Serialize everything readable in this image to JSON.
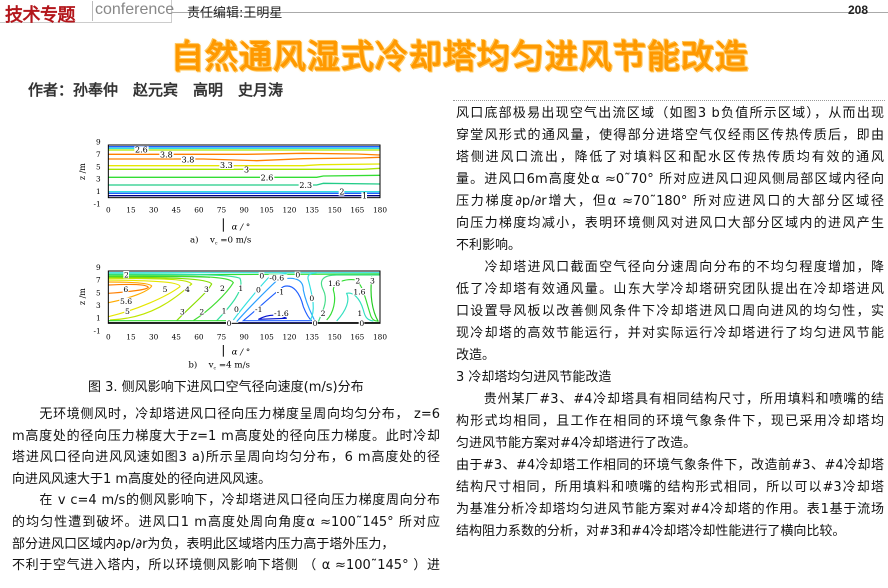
{
  "header": {
    "section_logo": "技术专题",
    "conference_label": "conference",
    "editor": "责任编辑:王明星",
    "page_number": "208"
  },
  "article": {
    "title": "自然通风湿式冷却塔均匀进风节能改造",
    "authors": "作者：孙奉仲　赵元宾　高明　史月涛"
  },
  "figure": {
    "caption": "图 3. 侧风影响下进风口空气径向速度(m/s)分布",
    "x_ticks": [
      "0",
      "15",
      "30",
      "45",
      "60",
      "75",
      "90",
      "105",
      "120",
      "135",
      "150",
      "165",
      "180"
    ],
    "y_ticks": [
      "9",
      "7",
      "5",
      "3",
      "1",
      "-1"
    ],
    "y_label": "z /m",
    "x_label": "α / °",
    "panel_a": {
      "label": "a)　 v",
      "sub": "c",
      "cond": " =0  m/s",
      "contour_labels": [
        "2.6",
        "3.8",
        "3.8",
        "3.3",
        "3",
        "2.6",
        "2.3",
        "2",
        "1"
      ]
    },
    "panel_b": {
      "label": "b)　 v",
      "sub": "c",
      "cond": " =4  m/s",
      "contour_labels": [
        "2",
        "6",
        "5.6",
        "5",
        "5",
        "4",
        "3",
        "2",
        "1",
        "3",
        "2",
        "1",
        "0",
        "0",
        "-0.6",
        "0",
        "0",
        "-1",
        "-1",
        "-1.6",
        "0",
        "0",
        "0",
        "2",
        "1.6",
        "2",
        "3",
        "1.6",
        "1",
        "0"
      ]
    },
    "colors": {
      "orange": "#ff7f00",
      "yellow": "#e6e600",
      "green": "#33dd33",
      "cyan": "#33e0e0",
      "blue": "#2060ff",
      "navy": "#000080"
    }
  },
  "left_column": [
    {
      "text": "　　无环境侧风时，冷却塔进风口径向压力梯度呈周向均匀分布， z=6",
      "full": true
    },
    {
      "text": "m高度处的径向压力梯度大于z=1 m高度处的径向压力梯度。此时冷却",
      "full": true
    },
    {
      "text": "塔进风口径向进风风速如图3 a)所示呈周向均匀分布，6 m高度处的径",
      "full": true
    },
    {
      "text": "向进风风速大于1 m高度处的径向进风风速。",
      "full": false
    },
    {
      "text": "　　在 v c=4 m/s的侧风影响下，冷却塔进风口径向压力梯度周向分布",
      "full": true
    },
    {
      "text": "的均匀性遭到破坏。进风口1 m高度处周向角度α ≈100˜145° 所对应",
      "full": true
    },
    {
      "text": "部分进风口区域内∂p/∂r为负，表明此区域塔内压力高于塔外压力，",
      "full": false
    },
    {
      "text": "不利于空气进入塔内，所以环境侧风影响下塔侧 （ α ≈100˜145° ）进",
      "full": true
    }
  ],
  "right_column": [
    {
      "text": "风口底部极易出现空气出流区域（如图3 b负值所示区域），从而出现",
      "full": true
    },
    {
      "text": "穿堂风形式的通风量，使得部分进塔空气仅经雨区传热传质后，即由",
      "full": true
    },
    {
      "text": "塔侧进风口流出，降低了对填料区和配水区传热传质均有效的通风",
      "full": true
    },
    {
      "text": "量。进风口6m高度处α ≈0˜70° 所对应进风口迎风侧局部区域内径向",
      "full": true
    },
    {
      "text": "压力梯度∂p/∂r增大，但α ≈70˜180° 所对应进风口的大部分区域径",
      "full": true
    },
    {
      "text": "向压力梯度均减小，表明环境侧风对进风口大部分区域内的进风产生",
      "full": true
    },
    {
      "text": "不利影响。",
      "full": false
    },
    {
      "text": "　　冷却塔进风口截面空气径向分速周向分布的不均匀程度增加，降",
      "full": true
    },
    {
      "text": "低了冷却塔有效通风量。山东大学冷却塔研究团队提出在冷却塔进风",
      "full": true
    },
    {
      "text": "口设置导风板以改善侧风条件下冷却塔进风口周向进风的均匀性，实",
      "full": true
    },
    {
      "text": "现冷却塔的高效节能运行，并对实际运行冷却塔进行了均匀进风节能",
      "full": true
    },
    {
      "text": "改造。",
      "full": false
    },
    {
      "text": "3 冷却塔均匀进风节能改造",
      "full": false
    },
    {
      "text": "　　贵州某厂#3、#4冷却塔具有相同结构尺寸，所用填料和喷嘴的结",
      "full": true
    },
    {
      "text": "构形式均相同，且工作在相同的环境气象条件下，现已采用冷却塔均",
      "full": true
    },
    {
      "text": "匀进风节能方案对#4冷却塔进行了改造。",
      "full": false
    },
    {
      "text": "由于#3、#4冷却塔工作相同的环境气象条件下，改造前#3、#4冷却塔",
      "full": true
    },
    {
      "text": "结构尺寸相同，所用填料和喷嘴的结构形式相同，所以可以#3冷却塔",
      "full": true
    },
    {
      "text": "为基准分析冷却塔均匀进风节能方案对#4冷却塔的作用。表1基于流场",
      "full": true
    },
    {
      "text": "结构阻力系数的分析，对#3和#4冷却塔冷却性能进行了横向比较。",
      "full": false
    }
  ]
}
